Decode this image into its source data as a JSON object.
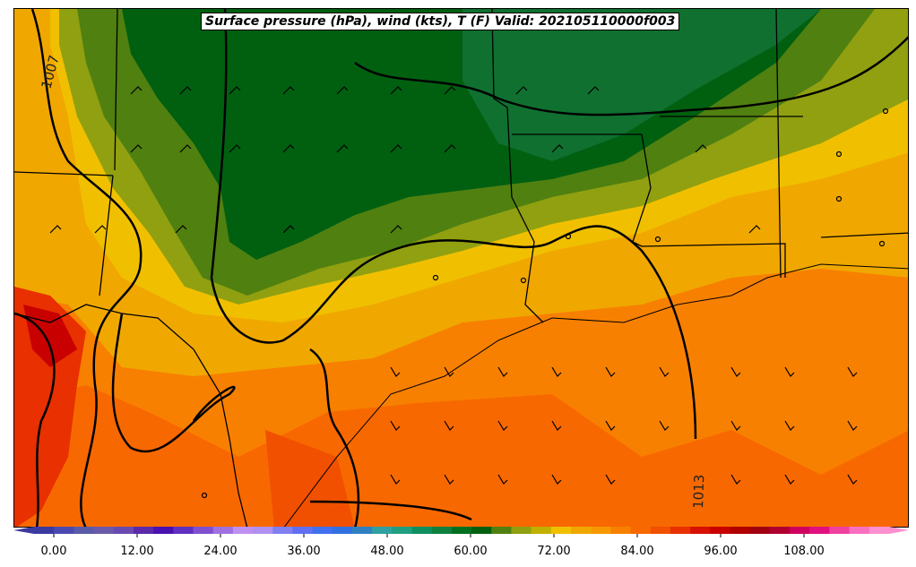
{
  "title": "Surface pressure (hPa), wind (kts), T (F) Valid: 202105110000f003",
  "isobar_labels": [
    "1007",
    "1013"
  ],
  "colorbar": {
    "ticks": [
      "0.00",
      "12.00",
      "24.00",
      "36.00",
      "48.00",
      "60.00",
      "72.00",
      "84.00",
      "96.00",
      "108.00"
    ],
    "colors": [
      "#3a3aa0",
      "#4a4ab0",
      "#5a5aa8",
      "#6a5aa8",
      "#6a4ab0",
      "#5a2aa8",
      "#4a10b0",
      "#6030c0",
      "#8050d0",
      "#a070e0",
      "#c090f0",
      "#b090f0",
      "#8080f0",
      "#6070f0",
      "#4070f0",
      "#3070e0",
      "#3080c0",
      "#30a0a0",
      "#20a080",
      "#109060",
      "#108040",
      "#007020",
      "#006010",
      "#508010",
      "#90a010",
      "#c0b000",
      "#f0c000",
      "#f0a800",
      "#f89800",
      "#f88000",
      "#f86800",
      "#f05000",
      "#e83000",
      "#d81000",
      "#c80000",
      "#b00000",
      "#a00010",
      "#b00030",
      "#d00060",
      "#e01080",
      "#f040a0",
      "#f870c0",
      "#ff90d0"
    ]
  }
}
